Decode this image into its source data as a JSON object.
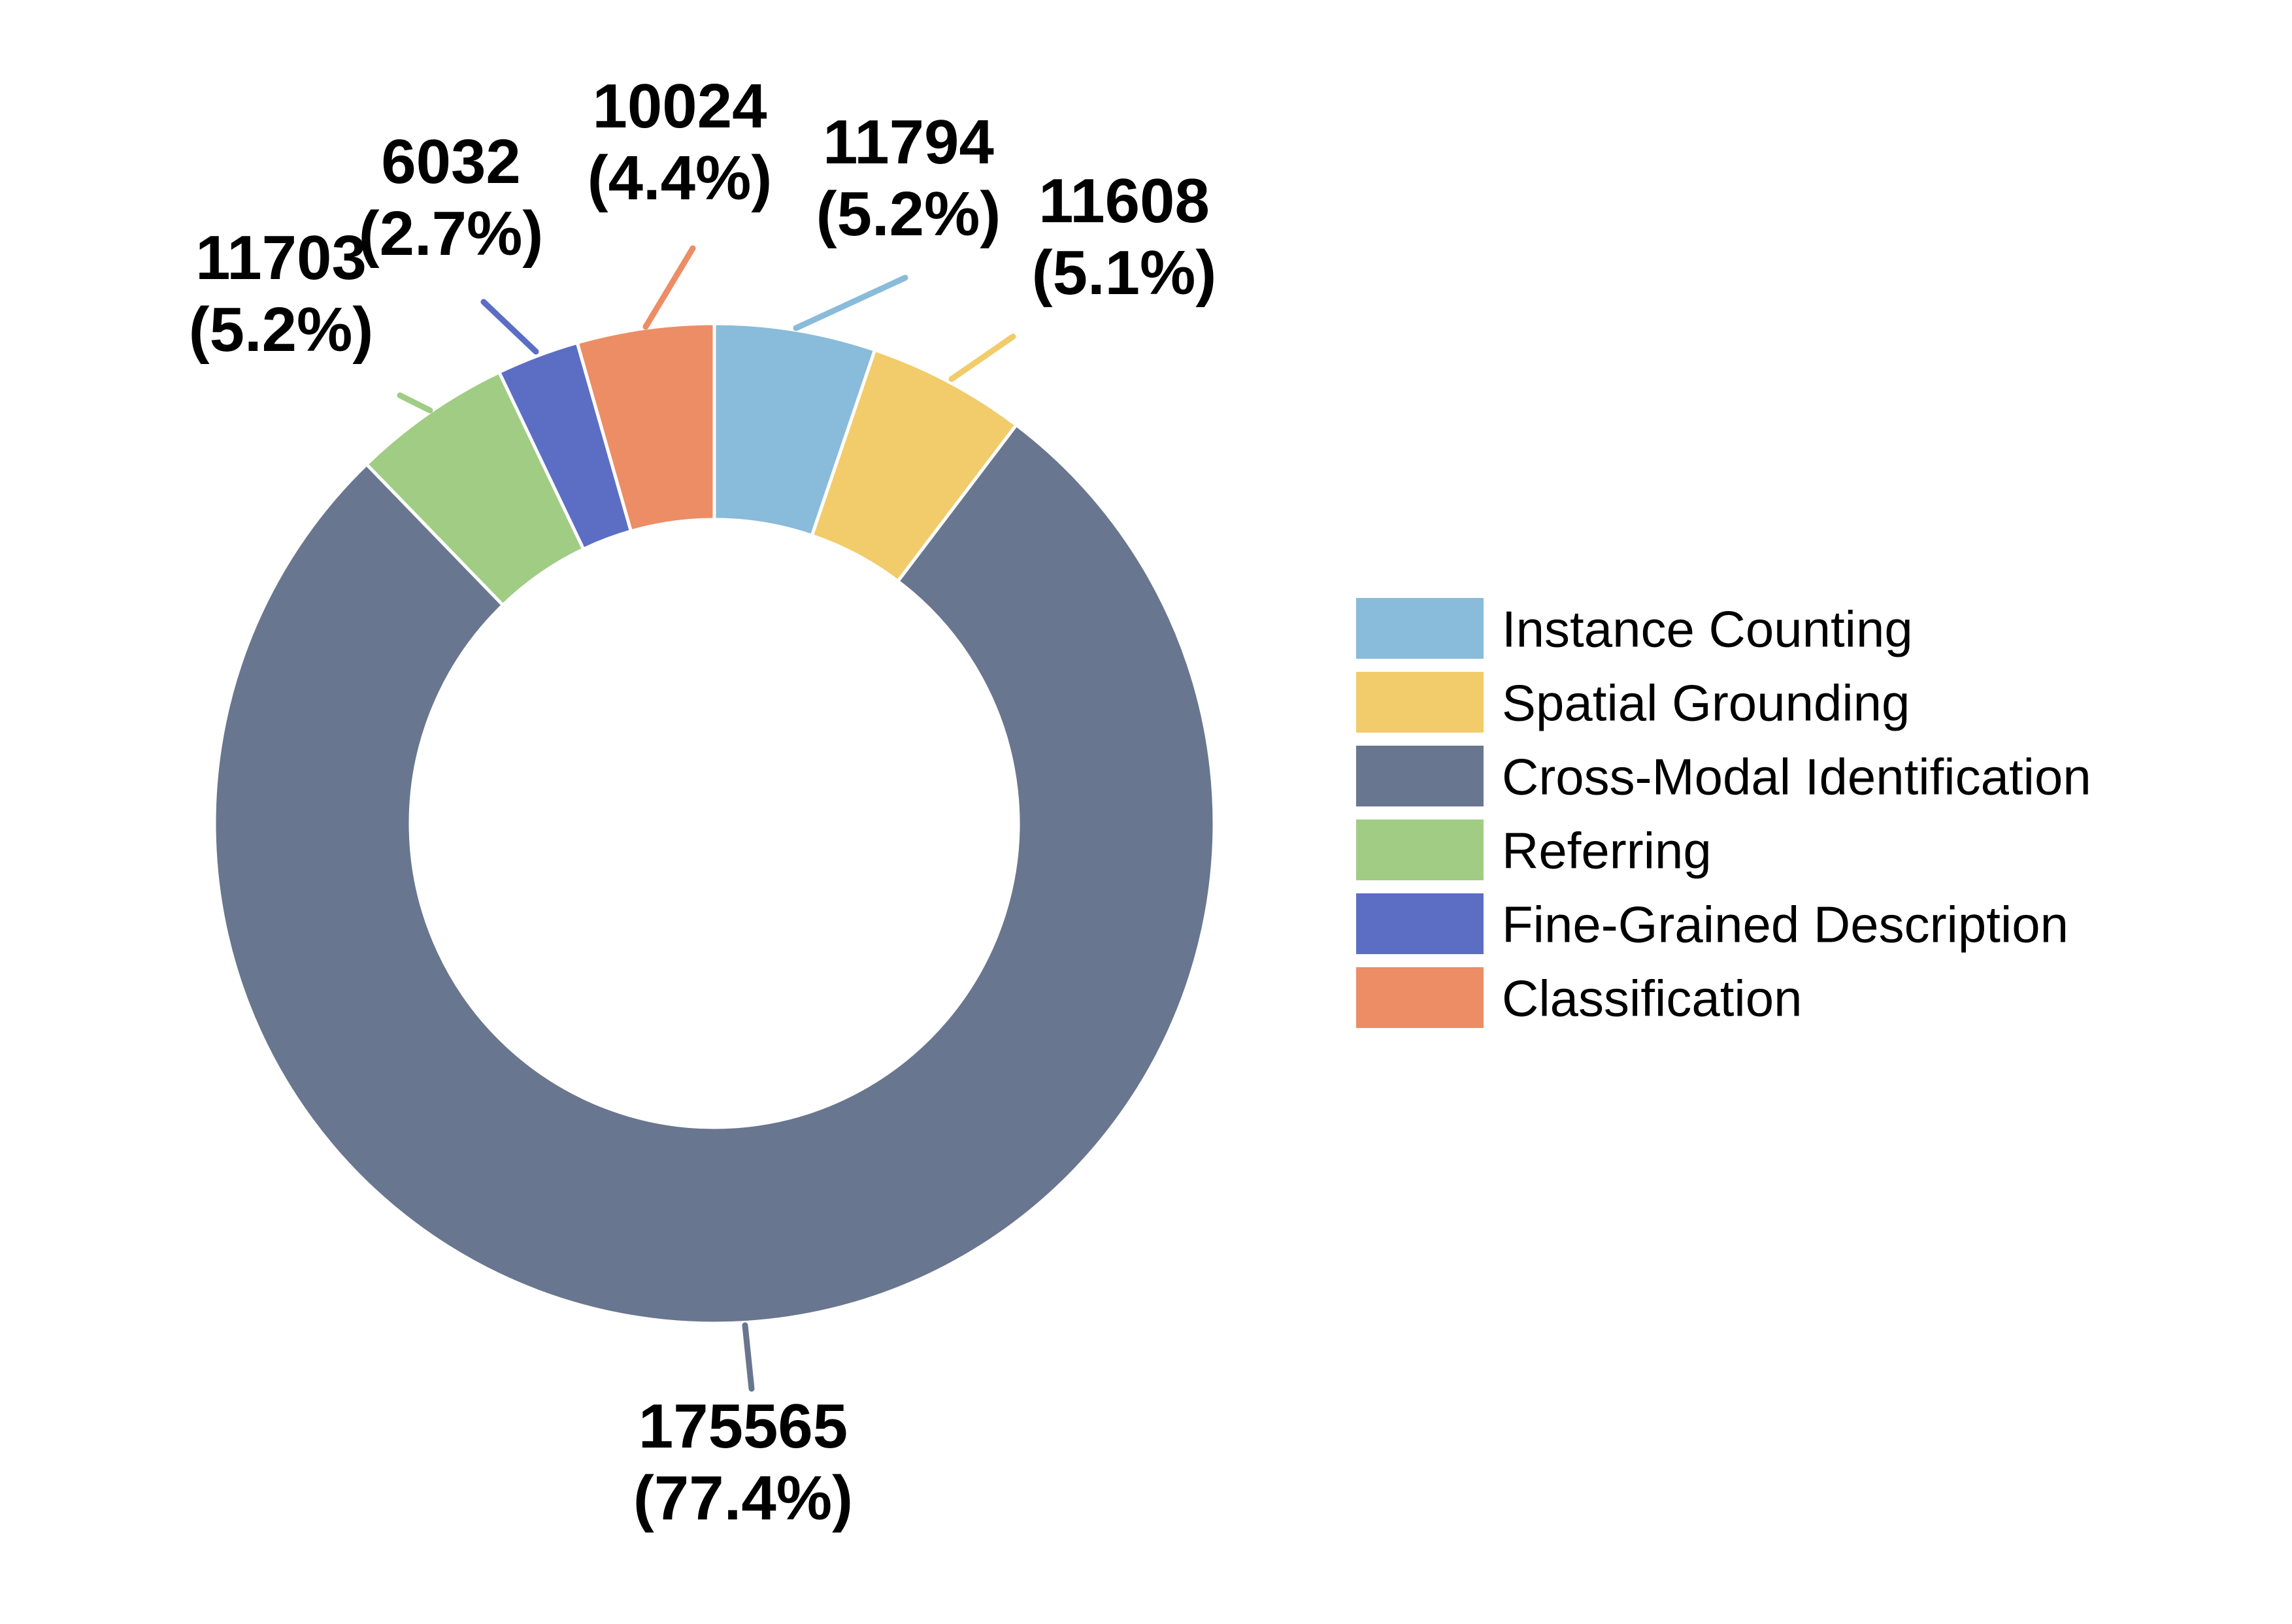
{
  "chart_data": {
    "type": "donut",
    "title": "",
    "legend_position": "right",
    "series": [
      {
        "name": "Instance Counting",
        "value": 11794,
        "percent": "5.2%",
        "color": "#89BBDA"
      },
      {
        "name": "Spatial Grounding",
        "value": 11608,
        "percent": "5.1%",
        "color": "#F2CC6B"
      },
      {
        "name": "Cross-Modal Identification",
        "value": 175565,
        "percent": "77.4%",
        "color": "#69768F"
      },
      {
        "name": "Referring",
        "value": 11703,
        "percent": "5.2%",
        "color": "#A0CC84"
      },
      {
        "name": "Fine-Grained Description",
        "value": 6032,
        "percent": "2.7%",
        "color": "#5C6EC4"
      },
      {
        "name": "Classification",
        "value": 10024,
        "percent": "4.4%",
        "color": "#EC8D66"
      }
    ]
  }
}
